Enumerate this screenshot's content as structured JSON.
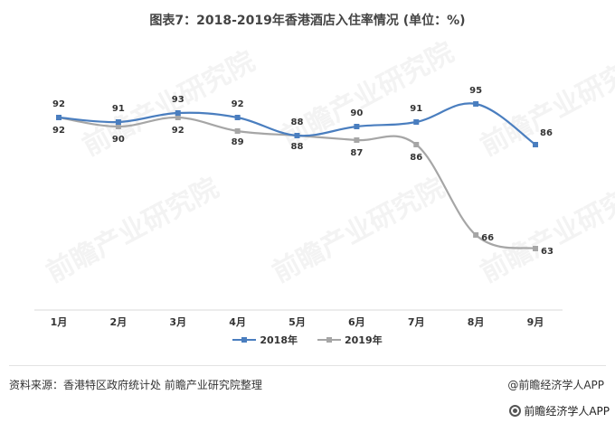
{
  "title": "图表7：2018-2019年香港酒店入住率情况 (单位：%)",
  "source": "资料来源：香港特区政府统计处 前瞻产业研究院整理",
  "brand": "@前瞻经济学人APP",
  "brand_bottom": "前瞻经济学人APP",
  "watermark": "前瞻产业研究院",
  "colors": {
    "s2018": "#4a7ebf",
    "s2019": "#a6a6a6",
    "axis": "#d9d9d9"
  },
  "chart_data": {
    "type": "line",
    "title": "图表7：2018-2019年香港酒店入住率情况 (单位：%)",
    "categories": [
      "1月",
      "2月",
      "3月",
      "4月",
      "5月",
      "6月",
      "7月",
      "8月",
      "9月"
    ],
    "series": [
      {
        "name": "2018年",
        "values": [
          92,
          91,
          93,
          92,
          88,
          90,
          91,
          95,
          86
        ]
      },
      {
        "name": "2019年",
        "values": [
          92,
          90,
          92,
          89,
          88,
          87,
          86,
          66,
          63
        ]
      }
    ],
    "ylim": [
      60,
      100
    ],
    "smooth": true,
    "grid": false,
    "legend": "bottom"
  }
}
